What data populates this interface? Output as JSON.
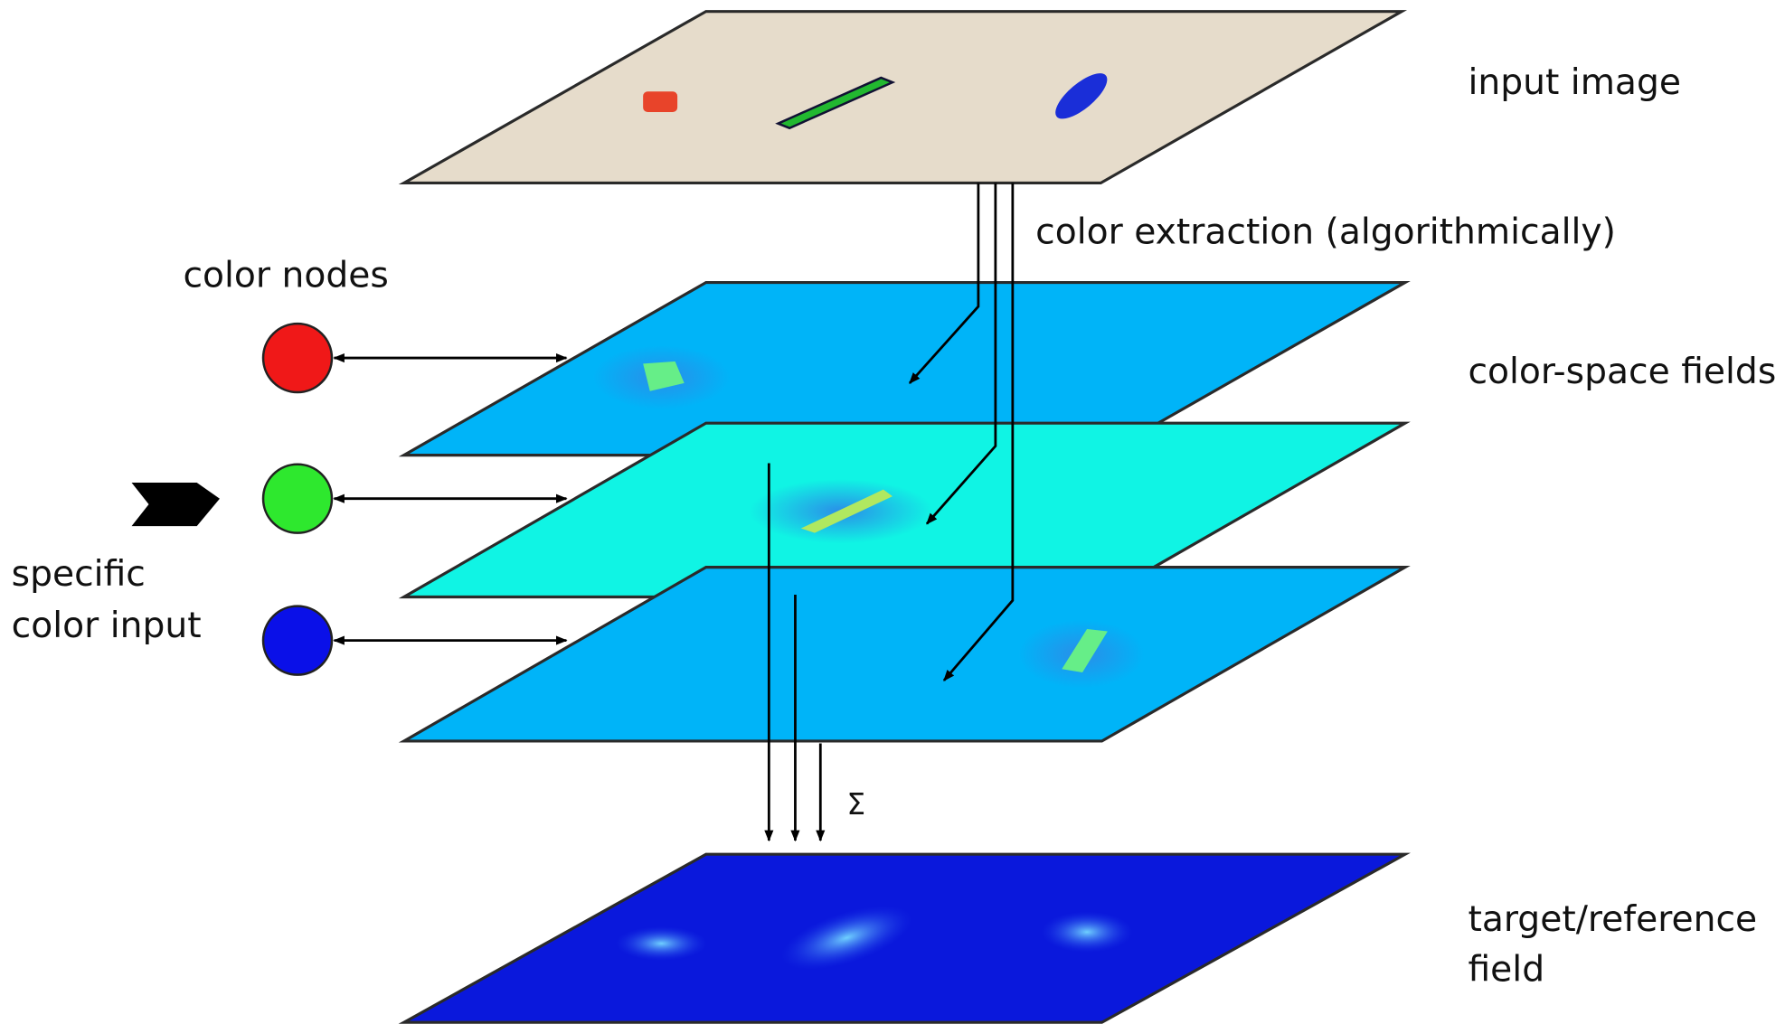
{
  "input_image": "input image",
  "color_extraction": "color extraction (algorithmically)",
  "color_nodes": "color nodes",
  "color_space_fields": "color-space fields",
  "specific_color_input": [
    "specific",
    "color input"
  ],
  "sum_symbol": "Σ",
  "target_field": [
    "target/reference",
    "field"
  ]
}
